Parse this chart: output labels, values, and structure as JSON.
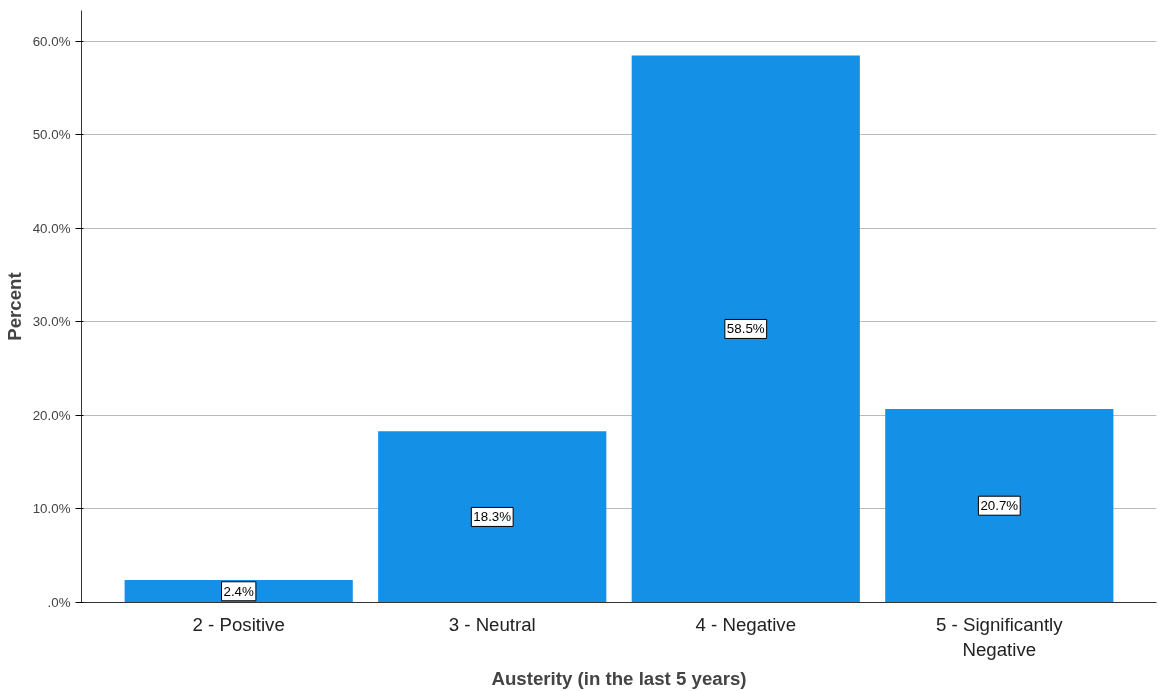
{
  "chart_data": {
    "type": "bar",
    "xlabel": "Austerity (in the last 5 years)",
    "ylabel": "Percent",
    "categories": [
      "2 - Positive",
      "3 - Neutral",
      "4 - Negative",
      "5 - Significantly Negative"
    ],
    "values": [
      2.4,
      18.3,
      58.5,
      20.7
    ],
    "value_labels": [
      "2.4%",
      "18.3%",
      "58.5%",
      "20.7%"
    ],
    "color": "#1490e6",
    "ylim": [
      0,
      63.3
    ],
    "yticks": [
      {
        "value": 0,
        "label": ".0%"
      },
      {
        "value": 10,
        "label": "10.0%"
      },
      {
        "value": 20,
        "label": "20.0%"
      },
      {
        "value": 30,
        "label": "30.0%"
      },
      {
        "value": 40,
        "label": "40.0%"
      },
      {
        "value": 50,
        "label": "50.0%"
      },
      {
        "value": 60,
        "label": "60.0%"
      }
    ],
    "grid": "y"
  }
}
